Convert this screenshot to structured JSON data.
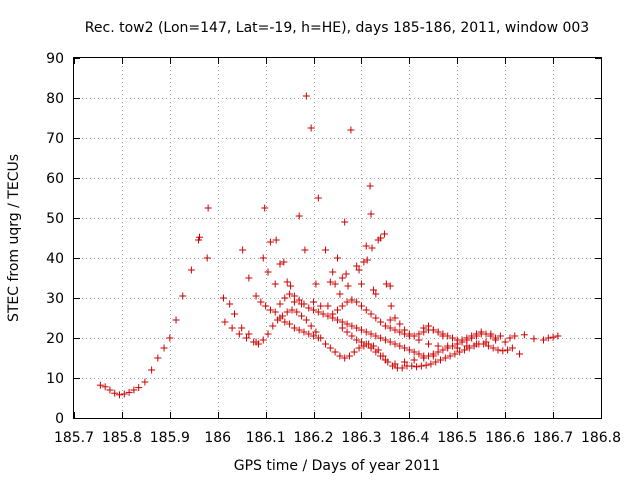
{
  "chart_data": {
    "type": "scatter",
    "title": "Rec. tow2 (Lon=147, Lat=-19, h=HE), days 185-186, 2011, window 003",
    "xlabel": "GPS time / Days of year 2011",
    "ylabel": "STEC from uqrg / TECUs",
    "xlim": [
      185.7,
      186.8
    ],
    "ylim": [
      0,
      90
    ],
    "xticks": [
      185.7,
      185.8,
      185.9,
      186,
      186.1,
      186.2,
      186.3,
      186.4,
      186.5,
      186.6,
      186.7,
      186.8
    ],
    "xtick_labels": [
      "185.7",
      "185.8",
      "185.9",
      "186",
      "186.1",
      "186.2",
      "186.3",
      "186.4",
      "186.5",
      "186.6",
      "186.7",
      "186.8"
    ],
    "yticks": [
      0,
      10,
      20,
      30,
      40,
      50,
      60,
      70,
      80,
      90
    ],
    "ytick_labels": [
      "0",
      "10",
      "20",
      "30",
      "40",
      "50",
      "60",
      "70",
      "80",
      "90"
    ],
    "grid": true,
    "marker": "+",
    "color": "#cc0000",
    "points": [
      [
        185.755,
        8.2
      ],
      [
        185.765,
        7.8
      ],
      [
        185.775,
        7.0
      ],
      [
        185.785,
        6.2
      ],
      [
        185.795,
        5.8
      ],
      [
        185.805,
        6.0
      ],
      [
        185.815,
        6.4
      ],
      [
        185.825,
        7.0
      ],
      [
        185.835,
        7.6
      ],
      [
        185.848,
        9.0
      ],
      [
        185.862,
        12.0
      ],
      [
        185.875,
        15.0
      ],
      [
        185.888,
        17.5
      ],
      [
        185.9,
        20.0
      ],
      [
        185.913,
        24.5
      ],
      [
        185.927,
        30.5
      ],
      [
        185.945,
        37.0
      ],
      [
        185.96,
        44.5
      ],
      [
        185.962,
        45.2
      ],
      [
        185.978,
        40.0
      ],
      [
        185.98,
        52.5
      ],
      [
        186.012,
        30.0
      ],
      [
        186.025,
        28.5
      ],
      [
        186.035,
        26.0
      ],
      [
        186.05,
        22.5
      ],
      [
        186.065,
        21.0
      ],
      [
        186.08,
        30.5
      ],
      [
        186.09,
        29.0
      ],
      [
        186.1,
        28.0
      ],
      [
        186.11,
        27.0
      ],
      [
        186.12,
        26.5
      ],
      [
        186.13,
        25.0
      ],
      [
        186.14,
        24.0
      ],
      [
        186.15,
        23.5
      ],
      [
        186.16,
        22.5
      ],
      [
        186.17,
        22.0
      ],
      [
        186.18,
        21.5
      ],
      [
        186.19,
        21.0
      ],
      [
        186.2,
        20.5
      ],
      [
        186.21,
        20.0
      ],
      [
        186.015,
        24.0
      ],
      [
        186.03,
        22.5
      ],
      [
        186.045,
        21.0
      ],
      [
        186.06,
        20.0
      ],
      [
        186.075,
        19.0
      ],
      [
        186.085,
        18.5
      ],
      [
        186.095,
        19.5
      ],
      [
        186.105,
        21.0
      ],
      [
        186.115,
        23.0
      ],
      [
        186.125,
        24.5
      ],
      [
        186.135,
        25.5
      ],
      [
        186.145,
        26.5
      ],
      [
        186.155,
        27.0
      ],
      [
        186.165,
        26.5
      ],
      [
        186.175,
        25.5
      ],
      [
        186.185,
        24.5
      ],
      [
        186.195,
        23.0
      ],
      [
        186.205,
        21.5
      ],
      [
        186.215,
        20.0
      ],
      [
        186.225,
        18.5
      ],
      [
        186.235,
        17.5
      ],
      [
        186.245,
        16.5
      ],
      [
        186.255,
        15.5
      ],
      [
        186.265,
        15.0
      ],
      [
        186.275,
        15.5
      ],
      [
        186.285,
        16.5
      ],
      [
        186.295,
        17.5
      ],
      [
        186.305,
        18.0
      ],
      [
        186.315,
        18.5
      ],
      [
        186.325,
        18.0
      ],
      [
        186.335,
        17.0
      ],
      [
        186.345,
        15.5
      ],
      [
        186.355,
        14.0
      ],
      [
        186.365,
        13.0
      ],
      [
        186.375,
        12.5
      ],
      [
        186.385,
        12.5
      ],
      [
        186.395,
        13.0
      ],
      [
        186.405,
        13.0
      ],
      [
        186.415,
        12.8
      ],
      [
        186.425,
        13.0
      ],
      [
        186.435,
        13.2
      ],
      [
        186.445,
        13.5
      ],
      [
        186.455,
        14.0
      ],
      [
        186.465,
        14.5
      ],
      [
        186.475,
        15.0
      ],
      [
        186.485,
        15.5
      ],
      [
        186.495,
        16.0
      ],
      [
        186.505,
        16.5
      ],
      [
        186.515,
        17.0
      ],
      [
        186.525,
        17.5
      ],
      [
        186.535,
        18.0
      ],
      [
        186.545,
        18.5
      ],
      [
        186.555,
        18.5
      ],
      [
        186.565,
        18.0
      ],
      [
        186.575,
        17.5
      ],
      [
        186.585,
        17.0
      ],
      [
        186.595,
        16.8
      ],
      [
        186.605,
        17.0
      ],
      [
        186.615,
        17.5
      ],
      [
        186.63,
        16.0
      ],
      [
        186.052,
        42.0
      ],
      [
        186.065,
        35.0
      ],
      [
        186.08,
        19.0
      ],
      [
        186.095,
        40.0
      ],
      [
        186.098,
        52.5
      ],
      [
        186.105,
        36.5
      ],
      [
        186.11,
        44.0
      ],
      [
        186.122,
        44.5
      ],
      [
        186.12,
        33.5
      ],
      [
        186.13,
        38.5
      ],
      [
        186.138,
        39.0
      ],
      [
        186.145,
        34.0
      ],
      [
        186.152,
        33.0
      ],
      [
        186.16,
        29.0
      ],
      [
        186.17,
        50.5
      ],
      [
        186.175,
        28.5
      ],
      [
        186.182,
        42.0
      ],
      [
        186.185,
        80.5
      ],
      [
        186.195,
        72.5
      ],
      [
        186.2,
        29.0
      ],
      [
        186.205,
        33.5
      ],
      [
        186.21,
        55.0
      ],
      [
        186.215,
        28.0
      ],
      [
        186.225,
        42.0
      ],
      [
        186.23,
        28.0
      ],
      [
        186.235,
        34.0
      ],
      [
        186.24,
        36.5
      ],
      [
        186.245,
        33.5
      ],
      [
        186.25,
        40.0
      ],
      [
        186.255,
        31.0
      ],
      [
        186.26,
        35.0
      ],
      [
        186.265,
        49.0
      ],
      [
        186.268,
        36.0
      ],
      [
        186.272,
        33.0
      ],
      [
        186.278,
        72.0
      ],
      [
        186.28,
        29.5
      ],
      [
        186.29,
        38.0
      ],
      [
        186.295,
        37.0
      ],
      [
        186.3,
        33.5
      ],
      [
        186.305,
        39.0
      ],
      [
        186.31,
        43.0
      ],
      [
        186.312,
        39.5
      ],
      [
        186.318,
        58.0
      ],
      [
        186.32,
        51.0
      ],
      [
        186.322,
        42.5
      ],
      [
        186.325,
        32.0
      ],
      [
        186.33,
        31.0
      ],
      [
        186.335,
        44.5
      ],
      [
        186.34,
        45.0
      ],
      [
        186.348,
        46.0
      ],
      [
        186.352,
        33.5
      ],
      [
        186.36,
        33.0
      ],
      [
        186.362,
        28.0
      ],
      [
        186.13,
        28.5
      ],
      [
        186.14,
        30.0
      ],
      [
        186.15,
        31.0
      ],
      [
        186.16,
        30.5
      ],
      [
        186.17,
        29.5
      ],
      [
        186.18,
        28.5
      ],
      [
        186.19,
        27.5
      ],
      [
        186.2,
        27.0
      ],
      [
        186.21,
        26.5
      ],
      [
        186.22,
        26.0
      ],
      [
        186.23,
        25.5
      ],
      [
        186.24,
        25.0
      ],
      [
        186.25,
        24.5
      ],
      [
        186.26,
        24.0
      ],
      [
        186.27,
        23.5
      ],
      [
        186.28,
        23.0
      ],
      [
        186.29,
        22.5
      ],
      [
        186.3,
        22.0
      ],
      [
        186.31,
        21.5
      ],
      [
        186.32,
        21.0
      ],
      [
        186.33,
        20.5
      ],
      [
        186.34,
        20.0
      ],
      [
        186.35,
        19.5
      ],
      [
        186.36,
        19.0
      ],
      [
        186.37,
        18.5
      ],
      [
        186.38,
        18.0
      ],
      [
        186.39,
        17.5
      ],
      [
        186.4,
        17.0
      ],
      [
        186.41,
        16.5
      ],
      [
        186.42,
        16.0
      ],
      [
        186.43,
        15.5
      ],
      [
        186.44,
        15.5
      ],
      [
        186.45,
        16.0
      ],
      [
        186.46,
        16.5
      ],
      [
        186.47,
        17.0
      ],
      [
        186.48,
        17.5
      ],
      [
        186.49,
        18.0
      ],
      [
        186.5,
        18.5
      ],
      [
        186.51,
        19.0
      ],
      [
        186.52,
        19.5
      ],
      [
        186.53,
        20.0
      ],
      [
        186.54,
        20.5
      ],
      [
        186.55,
        21.0
      ],
      [
        186.56,
        21.0
      ],
      [
        186.57,
        20.5
      ],
      [
        186.58,
        20.0
      ],
      [
        186.24,
        26.0
      ],
      [
        186.25,
        27.0
      ],
      [
        186.26,
        28.0
      ],
      [
        186.27,
        29.0
      ],
      [
        186.28,
        29.5
      ],
      [
        186.29,
        29.0
      ],
      [
        186.3,
        28.0
      ],
      [
        186.31,
        27.0
      ],
      [
        186.32,
        26.0
      ],
      [
        186.33,
        25.0
      ],
      [
        186.34,
        24.0
      ],
      [
        186.35,
        23.0
      ],
      [
        186.36,
        22.5
      ],
      [
        186.37,
        22.0
      ],
      [
        186.38,
        21.5
      ],
      [
        186.39,
        21.0
      ],
      [
        186.4,
        20.5
      ],
      [
        186.41,
        20.5
      ],
      [
        186.42,
        21.0
      ],
      [
        186.43,
        21.5
      ],
      [
        186.44,
        22.0
      ],
      [
        186.45,
        22.0
      ],
      [
        186.46,
        21.5
      ],
      [
        186.47,
        21.0
      ],
      [
        186.48,
        20.5
      ],
      [
        186.49,
        20.0
      ],
      [
        186.5,
        19.5
      ],
      [
        186.51,
        19.5
      ],
      [
        186.52,
        20.0
      ],
      [
        186.53,
        20.5
      ],
      [
        186.54,
        21.0
      ],
      [
        186.55,
        21.5
      ],
      [
        186.57,
        21.0
      ],
      [
        186.59,
        20.5
      ],
      [
        186.61,
        20.0
      ],
      [
        186.62,
        20.5
      ],
      [
        186.64,
        20.8
      ],
      [
        186.66,
        19.8
      ],
      [
        186.68,
        19.5
      ],
      [
        186.69,
        20.0
      ],
      [
        186.7,
        20.2
      ],
      [
        186.71,
        20.5
      ],
      [
        186.26,
        22.5
      ],
      [
        186.27,
        21.5
      ],
      [
        186.28,
        20.5
      ],
      [
        186.29,
        19.5
      ],
      [
        186.3,
        19.0
      ],
      [
        186.31,
        18.5
      ],
      [
        186.32,
        17.5
      ],
      [
        186.33,
        16.5
      ],
      [
        186.34,
        15.5
      ],
      [
        186.35,
        14.5
      ],
      [
        186.37,
        13.5
      ],
      [
        186.39,
        14.0
      ],
      [
        186.41,
        14.5
      ],
      [
        186.43,
        15.0
      ],
      [
        186.45,
        15.5
      ],
      [
        186.36,
        24.5
      ],
      [
        186.37,
        25.0
      ],
      [
        186.38,
        23.5
      ],
      [
        186.39,
        22.0
      ],
      [
        186.4,
        21.0
      ],
      [
        186.42,
        19.5
      ],
      [
        186.44,
        18.5
      ],
      [
        186.46,
        18.0
      ],
      [
        186.48,
        18.0
      ],
      [
        186.5,
        17.5
      ],
      [
        186.52,
        18.0
      ],
      [
        186.54,
        18.5
      ],
      [
        186.56,
        19.0
      ],
      [
        186.58,
        19.5
      ],
      [
        186.6,
        19.0
      ],
      [
        186.43,
        22.5
      ],
      [
        186.44,
        23.0
      ],
      [
        186.45,
        22.0
      ],
      [
        186.46,
        21.5
      ],
      [
        186.47,
        20.5
      ]
    ]
  }
}
